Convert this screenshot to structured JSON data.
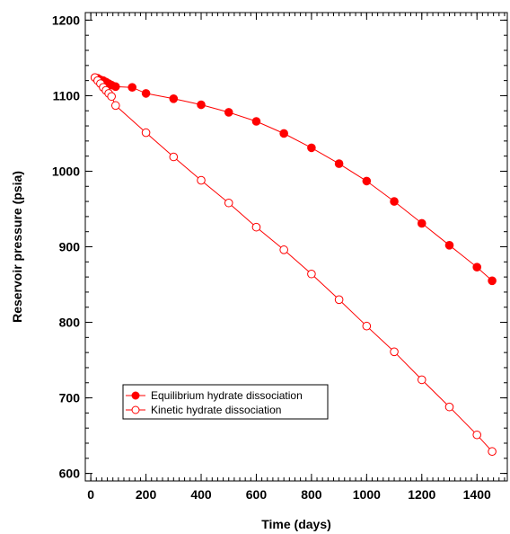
{
  "chart_data": {
    "type": "line",
    "title": "",
    "xlabel": "Time (days)",
    "ylabel": "Reservoir pressure (psia)",
    "xlim": [
      -20,
      1510
    ],
    "ylim": [
      590,
      1210
    ],
    "x_ticks": [
      0,
      200,
      400,
      600,
      800,
      1000,
      1200,
      1400
    ],
    "y_ticks": [
      600,
      700,
      800,
      900,
      1000,
      1100,
      1200
    ],
    "grid": false,
    "legend_position": "lower-left",
    "series": [
      {
        "name": "Equilibrium hydrate dissociation",
        "marker": "filled-circle",
        "color": "#ff0000",
        "x": [
          15,
          25,
          35,
          45,
          55,
          65,
          75,
          90,
          150,
          200,
          300,
          400,
          500,
          600,
          700,
          800,
          900,
          1000,
          1100,
          1200,
          1300,
          1400,
          1455
        ],
        "y": [
          1124,
          1123,
          1121,
          1120,
          1118,
          1116,
          1114,
          1112,
          1111,
          1103,
          1096,
          1088,
          1078,
          1066,
          1050,
          1031,
          1010,
          987,
          960,
          931,
          902,
          873,
          855
        ]
      },
      {
        "name": "Kinetic hydrate dissociation",
        "marker": "open-circle",
        "color": "#ff0000",
        "x": [
          15,
          25,
          35,
          45,
          55,
          65,
          75,
          90,
          200,
          300,
          400,
          500,
          600,
          700,
          800,
          900,
          1000,
          1100,
          1200,
          1300,
          1400,
          1455
        ],
        "y": [
          1124,
          1120,
          1116,
          1111,
          1107,
          1103,
          1099,
          1087,
          1051,
          1019,
          988,
          958,
          926,
          896,
          864,
          830,
          795,
          761,
          724,
          688,
          651,
          629
        ]
      }
    ]
  }
}
